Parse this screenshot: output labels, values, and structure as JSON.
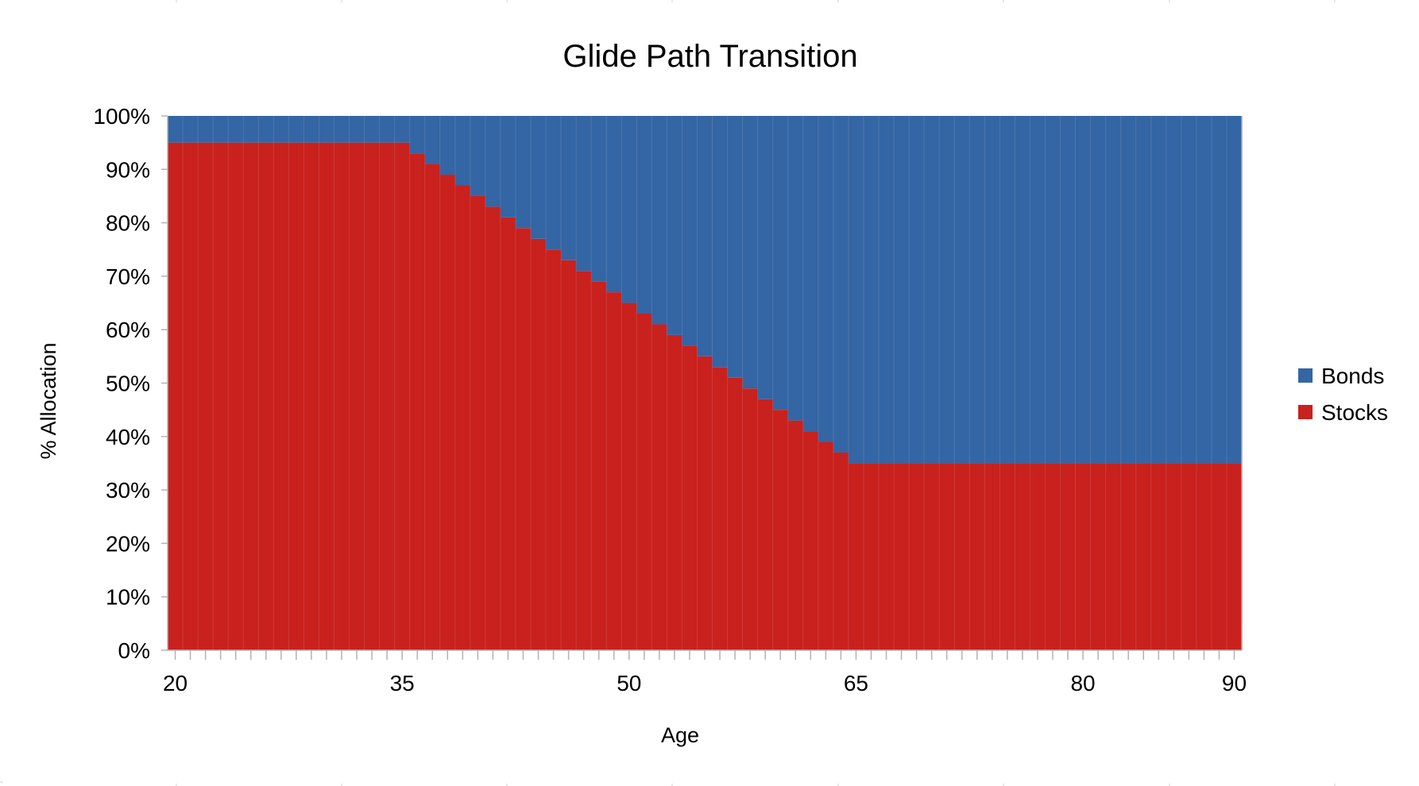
{
  "chart_data": {
    "type": "bar",
    "stacked": true,
    "normalized_percent": true,
    "title": "Glide Path Transition",
    "xlabel": "Age",
    "ylabel": "% Allocation",
    "x_range": [
      20,
      90
    ],
    "ylim": [
      0,
      100
    ],
    "y_ticks": [
      "0%",
      "10%",
      "20%",
      "30%",
      "40%",
      "50%",
      "60%",
      "70%",
      "80%",
      "90%",
      "100%"
    ],
    "x_tick_labels": [
      "20",
      "35",
      "50",
      "65",
      "80",
      "90"
    ],
    "legend_position": "right",
    "grid": false,
    "categories": [
      20,
      21,
      22,
      23,
      24,
      25,
      26,
      27,
      28,
      29,
      30,
      31,
      32,
      33,
      34,
      35,
      36,
      37,
      38,
      39,
      40,
      41,
      42,
      43,
      44,
      45,
      46,
      47,
      48,
      49,
      50,
      51,
      52,
      53,
      54,
      55,
      56,
      57,
      58,
      59,
      60,
      61,
      62,
      63,
      64,
      65,
      66,
      67,
      68,
      69,
      70,
      71,
      72,
      73,
      74,
      75,
      76,
      77,
      78,
      79,
      80,
      81,
      82,
      83,
      84,
      85,
      86,
      87,
      88,
      89,
      90
    ],
    "series": [
      {
        "name": "Stocks",
        "color": "#c9211e",
        "values": [
          95,
          95,
          95,
          95,
          95,
          95,
          95,
          95,
          95,
          95,
          95,
          95,
          95,
          95,
          95,
          95,
          93,
          91,
          89,
          87,
          85,
          83,
          81,
          79,
          77,
          75,
          73,
          71,
          69,
          67,
          65,
          63,
          61,
          59,
          57,
          55,
          53,
          51,
          49,
          47,
          45,
          43,
          41,
          39,
          37,
          35,
          35,
          35,
          35,
          35,
          35,
          35,
          35,
          35,
          35,
          35,
          35,
          35,
          35,
          35,
          35,
          35,
          35,
          35,
          35,
          35,
          35,
          35,
          35,
          35,
          35
        ]
      },
      {
        "name": "Bonds",
        "color": "#3465a4",
        "values": [
          5,
          5,
          5,
          5,
          5,
          5,
          5,
          5,
          5,
          5,
          5,
          5,
          5,
          5,
          5,
          5,
          7,
          9,
          11,
          13,
          15,
          17,
          19,
          21,
          23,
          25,
          27,
          29,
          31,
          33,
          35,
          37,
          39,
          41,
          43,
          45,
          47,
          49,
          51,
          53,
          55,
          57,
          59,
          61,
          63,
          65,
          65,
          65,
          65,
          65,
          65,
          65,
          65,
          65,
          65,
          65,
          65,
          65,
          65,
          65,
          65,
          65,
          65,
          65,
          65,
          65,
          65,
          65,
          65,
          65,
          65
        ]
      }
    ],
    "legend": [
      {
        "name": "Bonds",
        "color": "#3465a4"
      },
      {
        "name": "Stocks",
        "color": "#c9211e"
      }
    ]
  }
}
